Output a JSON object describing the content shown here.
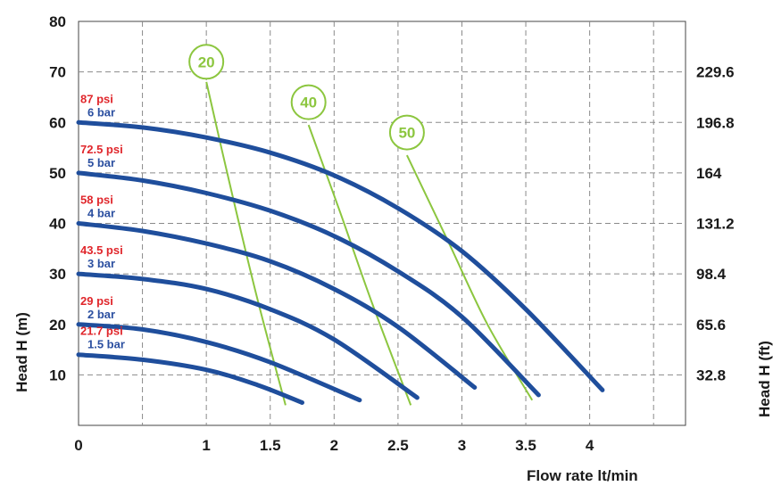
{
  "chart_data": {
    "type": "line",
    "xlabel": "Flow rate  lt/min",
    "ylabel": "Head H (m)",
    "y2label": "Head H (ft)",
    "xlim": [
      0,
      4.75
    ],
    "ylim": [
      0,
      80
    ],
    "grid": true,
    "x_ticks": [
      "0",
      "1",
      "1.5",
      "2",
      "2.5",
      "3",
      "3.5",
      "4"
    ],
    "x_tick_values": [
      0,
      1,
      1.5,
      2,
      2.5,
      3,
      3.5,
      4
    ],
    "y_ticks": [
      "10",
      "20",
      "30",
      "40",
      "50",
      "60",
      "70",
      "80"
    ],
    "y_tick_values": [
      10,
      20,
      30,
      40,
      50,
      60,
      70,
      80
    ],
    "y2_ticks": [
      {
        "label": "32.8",
        "at": 10
      },
      {
        "label": "65.6",
        "at": 20
      },
      {
        "label": "98.4",
        "at": 30
      },
      {
        "label": "131.2",
        "at": 40
      },
      {
        "label": "164",
        "at": 50
      },
      {
        "label": "196.8",
        "at": 60
      },
      {
        "label": "229.6",
        "at": 70
      }
    ],
    "series": [
      {
        "psi": "87 psi",
        "bar": "6 bar",
        "color": "#1f4e9c",
        "points": [
          [
            0,
            60
          ],
          [
            0.5,
            59
          ],
          [
            1,
            57
          ],
          [
            1.5,
            54
          ],
          [
            2,
            49.5
          ],
          [
            2.5,
            43
          ],
          [
            3,
            34.5
          ],
          [
            3.5,
            23
          ],
          [
            4.1,
            7
          ]
        ]
      },
      {
        "psi": "72.5 psi",
        "bar": "5 bar",
        "color": "#1f4e9c",
        "points": [
          [
            0,
            50
          ],
          [
            0.5,
            48.5
          ],
          [
            1,
            46
          ],
          [
            1.5,
            42.5
          ],
          [
            2,
            37.5
          ],
          [
            2.5,
            30.5
          ],
          [
            3,
            21.5
          ],
          [
            3.6,
            6
          ]
        ]
      },
      {
        "psi": "58 psi",
        "bar": "4 bar",
        "color": "#1f4e9c",
        "points": [
          [
            0,
            40
          ],
          [
            0.5,
            38.5
          ],
          [
            1,
            36
          ],
          [
            1.5,
            32.5
          ],
          [
            2,
            27
          ],
          [
            2.5,
            19.5
          ],
          [
            3.1,
            7.5
          ]
        ]
      },
      {
        "psi": "43.5 psi",
        "bar": "3 bar",
        "color": "#1f4e9c",
        "points": [
          [
            0,
            30
          ],
          [
            0.5,
            29
          ],
          [
            1,
            27
          ],
          [
            1.5,
            23
          ],
          [
            2,
            17
          ],
          [
            2.65,
            5.5
          ]
        ]
      },
      {
        "psi": "29 psi",
        "bar": "2 bar",
        "color": "#1f4e9c",
        "points": [
          [
            0,
            20
          ],
          [
            0.5,
            19
          ],
          [
            1,
            16.5
          ],
          [
            1.5,
            12.5
          ],
          [
            2.2,
            5
          ]
        ]
      },
      {
        "psi": "21.7 psi",
        "bar": "1.5 bar",
        "color": "#1f4e9c",
        "points": [
          [
            0,
            14
          ],
          [
            0.5,
            13
          ],
          [
            1,
            11
          ],
          [
            1.4,
            8
          ],
          [
            1.75,
            4.5
          ]
        ]
      }
    ],
    "efficiency_lines": [
      {
        "label": "20",
        "color": "#8cc63f",
        "circle_at": [
          1,
          72
        ],
        "points": [
          [
            1,
            68
          ],
          [
            1.2,
            46
          ],
          [
            1.4,
            25
          ],
          [
            1.62,
            4
          ]
        ]
      },
      {
        "label": "40",
        "color": "#8cc63f",
        "circle_at": [
          1.8,
          64
        ],
        "points": [
          [
            1.8,
            59.5
          ],
          [
            2.05,
            42
          ],
          [
            2.3,
            24
          ],
          [
            2.6,
            4
          ]
        ]
      },
      {
        "label": "50",
        "color": "#8cc63f",
        "circle_at": [
          2.57,
          58
        ],
        "points": [
          [
            2.57,
            53.5
          ],
          [
            2.9,
            36
          ],
          [
            3.2,
            20
          ],
          [
            3.55,
            5
          ]
        ]
      }
    ]
  }
}
